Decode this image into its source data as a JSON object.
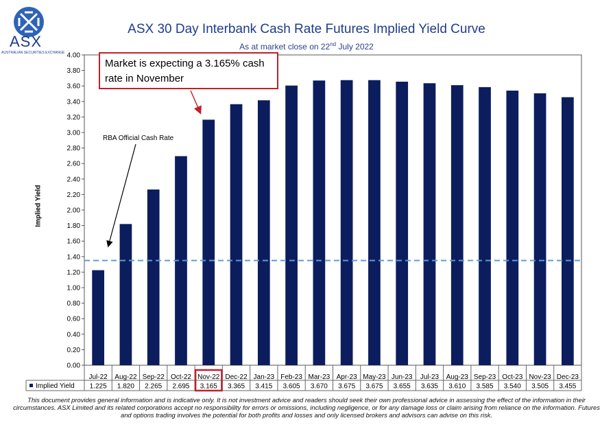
{
  "logo": {
    "name": "ASX",
    "subtitle": "AUSTRALIAN SECURITIES EXCHANGE",
    "icon": "asx-logo-icon",
    "color": "#1f3b8c"
  },
  "header": {
    "title": "ASX 30 Day Interbank Cash Rate Futures Implied Yield Curve",
    "subtitle_prefix": "As at market close on 22",
    "subtitle_sup": "nd",
    "subtitle_suffix": " July 2022"
  },
  "callout": {
    "text": "Market is expecting a 3.165% cash rate in November",
    "border_color": "#c0202a"
  },
  "rba_annotation": {
    "text": "RBA Official Cash Rate",
    "value": 1.35,
    "line_color": "#5b9bd5"
  },
  "chart_data": {
    "type": "bar",
    "title": "ASX 30 Day Interbank Cash Rate Futures Implied Yield Curve",
    "ylabel": "Implied Yield",
    "ylim": [
      0,
      4.0
    ],
    "ytick_step": 0.2,
    "grid": false,
    "bar_color": "#0c1d5e",
    "highlight_category": "Nov-22",
    "highlight_color": "#c0202a",
    "categories": [
      "Jul-22",
      "Aug-22",
      "Sep-22",
      "Oct-22",
      "Nov-22",
      "Dec-22",
      "Jan-23",
      "Feb-23",
      "Mar-23",
      "Apr-23",
      "May-23",
      "Jun-23",
      "Jul-23",
      "Aug-23",
      "Sep-23",
      "Oct-23",
      "Nov-23",
      "Dec-23"
    ],
    "series": [
      {
        "name": "Implied Yield",
        "values": [
          1.225,
          1.82,
          2.265,
          2.695,
          3.165,
          3.365,
          3.415,
          3.605,
          3.67,
          3.675,
          3.675,
          3.655,
          3.635,
          3.61,
          3.585,
          3.54,
          3.505,
          3.455
        ],
        "labels": [
          "1.225",
          "1.820",
          "2.265",
          "2.695",
          "3.165",
          "3.365",
          "3.415",
          "3.605",
          "3.670",
          "3.675",
          "3.675",
          "3.655",
          "3.635",
          "3.610",
          "3.585",
          "3.540",
          "3.505",
          "3.455"
        ]
      }
    ]
  },
  "footer": {
    "text": "This document provides general information and is indicative only. It is not investment advice and readers should seek their own professional advice in assessing the effect of the information in their circumstances. ASX Limited and its related corporations accept no responsibility for errors or omissions, including negligence, or for any damage loss or claim arising from reliance on the information. Futures and options trading involves the potential for both profits and losses and only licensed brokers and advisors can advise on this risk."
  }
}
